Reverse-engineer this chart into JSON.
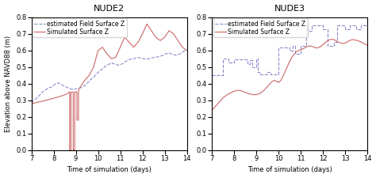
{
  "title1": "NUDE2",
  "title2": "NUDE3",
  "xlabel": "Time of simulation (days)",
  "ylabel": "Elevation above NAVD88 (m)",
  "legend_field": "estimated Field Surface Z",
  "legend_sim": "Simulated Surface Z",
  "xlim": [
    7,
    14
  ],
  "ylim": [
    0,
    0.8
  ],
  "xticks": [
    7,
    8,
    9,
    10,
    11,
    12,
    13,
    14
  ],
  "yticks": [
    0,
    0.1,
    0.2,
    0.3,
    0.4,
    0.5,
    0.6,
    0.7,
    0.8
  ],
  "field_color": "#8888cc",
  "sim_color": "#cc6666",
  "fontsize_title": 8,
  "fontsize_axis": 6,
  "fontsize_legend": 5.5,
  "fontsize_tick": 6
}
